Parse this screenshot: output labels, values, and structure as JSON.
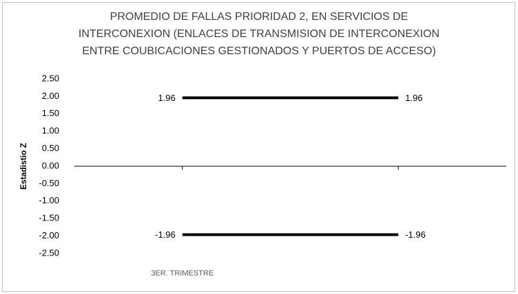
{
  "chart_data": {
    "type": "line",
    "title": [
      "PROMEDIO DE FALLAS PRIORIDAD 2, EN SERVICIOS DE",
      "INTERCONEXION (ENLACES DE TRANSMISION DE INTERCONEXION",
      "ENTRE COUBICACIONES GESTIONADOS Y PUERTOS DE ACCESO)"
    ],
    "y_label": "Estadistio Z",
    "categories": [
      "3ER. TRIMESTRE",
      null
    ],
    "series": [
      {
        "color": "#000000",
        "values": [
          1.96,
          1.96
        ]
      },
      {
        "color": "#000000",
        "values": [
          -1.96,
          -1.96
        ]
      }
    ],
    "ylim": [
      -2.5,
      2.5
    ],
    "yticks": [
      {
        "value": 2.5,
        "label": "2.50"
      },
      {
        "value": 2.0,
        "label": "2.00"
      },
      {
        "value": 1.5,
        "label": "1.50"
      },
      {
        "value": 1.0,
        "label": "1.00"
      },
      {
        "value": 0.5,
        "label": "0.50"
      },
      {
        "value": 0.0,
        "label": "0.00"
      },
      {
        "value": -0.5,
        "label": "-0.50"
      },
      {
        "value": -1.0,
        "label": "-1.00"
      },
      {
        "value": -1.5,
        "label": "-1.50"
      },
      {
        "value": -2.0,
        "label": "-2.00"
      },
      {
        "value": -2.5,
        "label": "-2.50"
      }
    ],
    "grid": false
  }
}
